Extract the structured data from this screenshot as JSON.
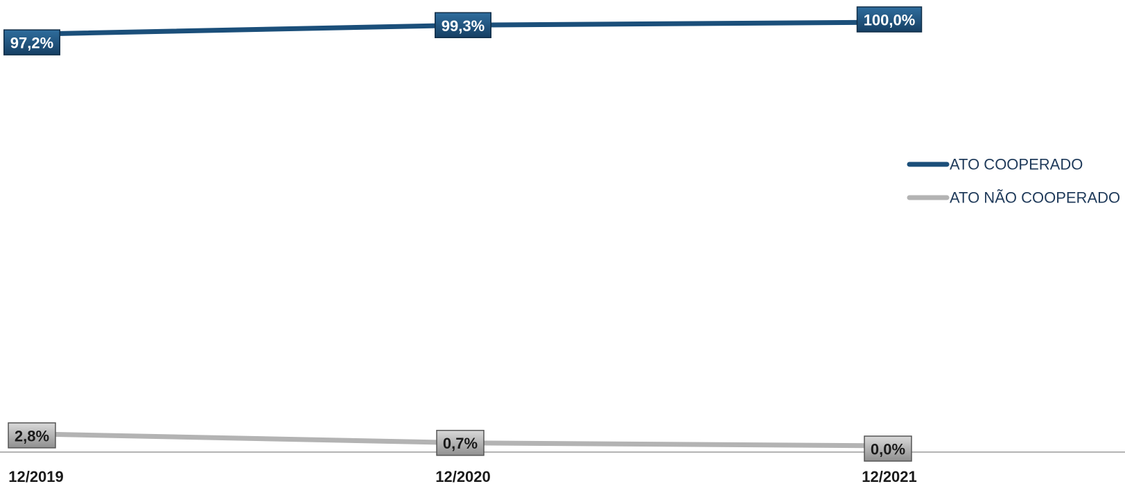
{
  "chart_data": {
    "type": "line",
    "categories": [
      "12/2019",
      "12/2020",
      "12/2021"
    ],
    "series": [
      {
        "name": "ATO COOPERADO",
        "values": [
          97.2,
          99.3,
          100.0
        ],
        "labels": [
          "97,2%",
          "99,3%",
          "100,0%"
        ],
        "color": "#1b4f7a"
      },
      {
        "name": "ATO NÃO COOPERADO",
        "values": [
          2.8,
          0.7,
          0.0
        ],
        "labels": [
          "2,8%",
          "0,7%",
          "0,0%"
        ],
        "color": "#b3b3b3"
      }
    ],
    "ylim": [
      0,
      100
    ],
    "grid": false,
    "legend_position": "right"
  }
}
